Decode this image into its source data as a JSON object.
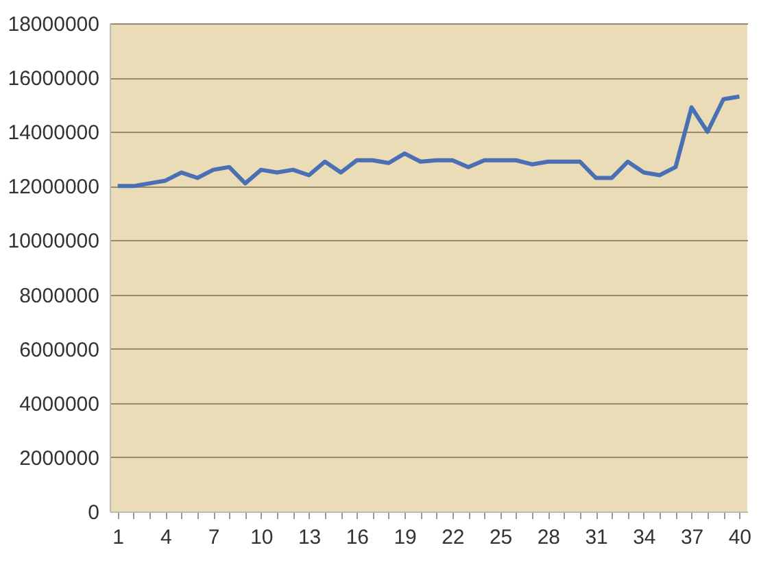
{
  "chart_data": {
    "type": "line",
    "categories": [
      "1",
      null,
      null,
      "4",
      null,
      null,
      "7",
      null,
      null,
      "10",
      null,
      null,
      "13",
      null,
      null,
      "16",
      null,
      null,
      "19",
      null,
      null,
      "22",
      null,
      null,
      "25",
      null,
      null,
      "28",
      null,
      null,
      "31",
      null,
      null,
      "34",
      null,
      null,
      "37",
      null,
      null,
      "40"
    ],
    "series": [
      {
        "color": "#4a6fb5",
        "values": [
          12000000,
          12000000,
          12100000,
          12200000,
          12500000,
          12300000,
          12600000,
          12700000,
          12100000,
          12600000,
          12500000,
          12600000,
          12400000,
          12900000,
          12500000,
          12950000,
          12950000,
          12850000,
          13200000,
          12900000,
          12950000,
          12950000,
          12700000,
          12950000,
          12950000,
          12950000,
          12800000,
          12900000,
          12900000,
          12900000,
          12300000,
          12300000,
          12900000,
          12500000,
          12400000,
          12700000,
          14900000,
          14000000,
          15200000,
          15300000
        ]
      }
    ],
    "ylim": [
      0,
      18000000
    ],
    "yticks": [
      0,
      2000000,
      4000000,
      6000000,
      8000000,
      10000000,
      12000000,
      14000000,
      16000000,
      18000000
    ],
    "grid": "y",
    "legend": false
  }
}
